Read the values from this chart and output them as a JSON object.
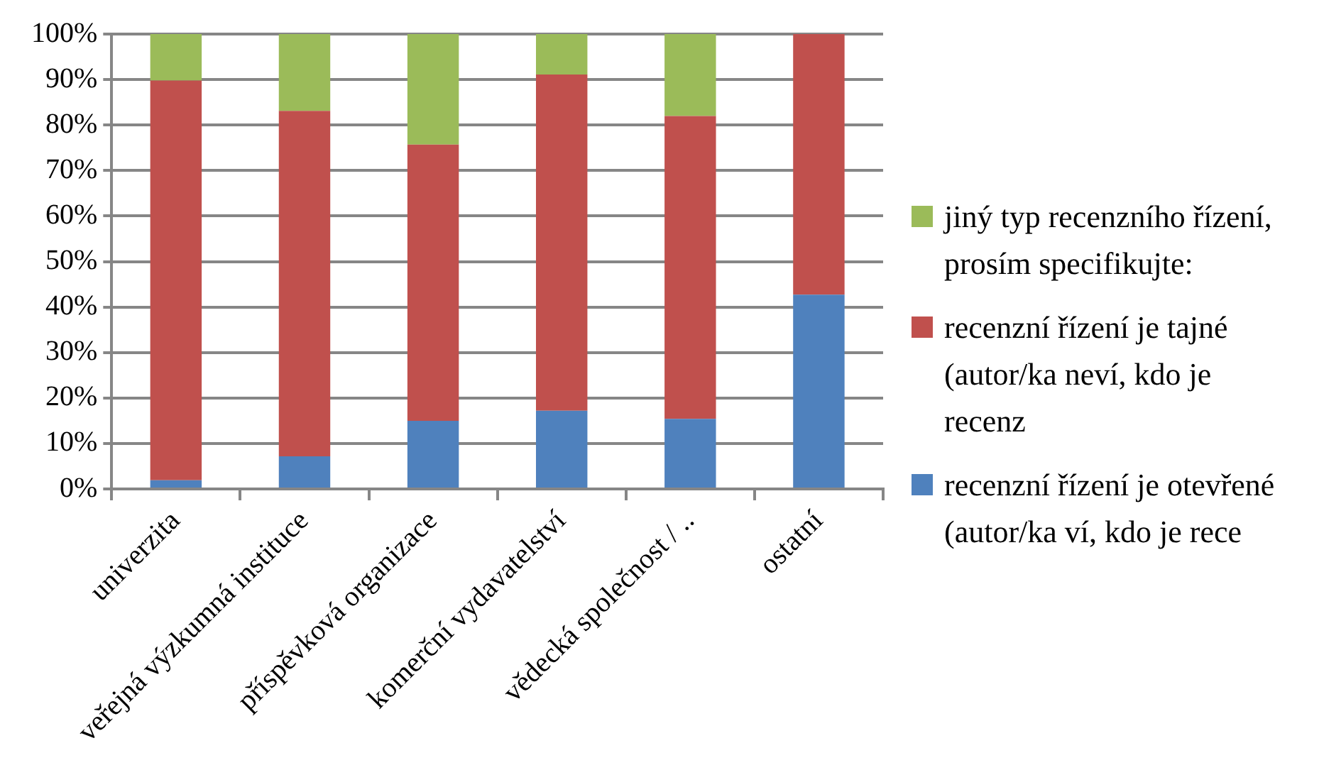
{
  "chart_data": {
    "type": "bar",
    "stacked": true,
    "categories": [
      "univerzita",
      "veřejná výzkumná instituce",
      "příspěvková organizace",
      "komerční vydavatelství",
      "vědecká společnost / ..",
      "ostatní"
    ],
    "series": [
      {
        "name": "recenzní řízení je otevřené (autor/ka ví, kdo je rece",
        "color": "#4f81bd",
        "values": [
          1.9,
          7.2,
          15.0,
          17.2,
          15.4,
          42.7
        ]
      },
      {
        "name": "recenzní řízení je tajné (autor/ka neví, kdo je recenz",
        "color": "#c0504d",
        "values": [
          87.9,
          75.9,
          60.7,
          73.9,
          66.6,
          57.3
        ]
      },
      {
        "name": "jiný typ recenzního řízení, prosím specifikujte:",
        "color": "#9bbb59",
        "values": [
          10.2,
          16.9,
          24.3,
          8.9,
          18.0,
          0
        ]
      }
    ],
    "ylim": [
      0,
      100
    ],
    "yticks": [
      {
        "value": 0,
        "label": "0%"
      },
      {
        "value": 10,
        "label": "10%"
      },
      {
        "value": 20,
        "label": "20%"
      },
      {
        "value": 30,
        "label": "30%"
      },
      {
        "value": 40,
        "label": "40%"
      },
      {
        "value": 50,
        "label": "50%"
      },
      {
        "value": 60,
        "label": "60%"
      },
      {
        "value": 70,
        "label": "70%"
      },
      {
        "value": 80,
        "label": "80%"
      },
      {
        "value": 90,
        "label": "90%"
      },
      {
        "value": 100,
        "label": "100%"
      }
    ],
    "grid": "y",
    "legend": "right"
  }
}
